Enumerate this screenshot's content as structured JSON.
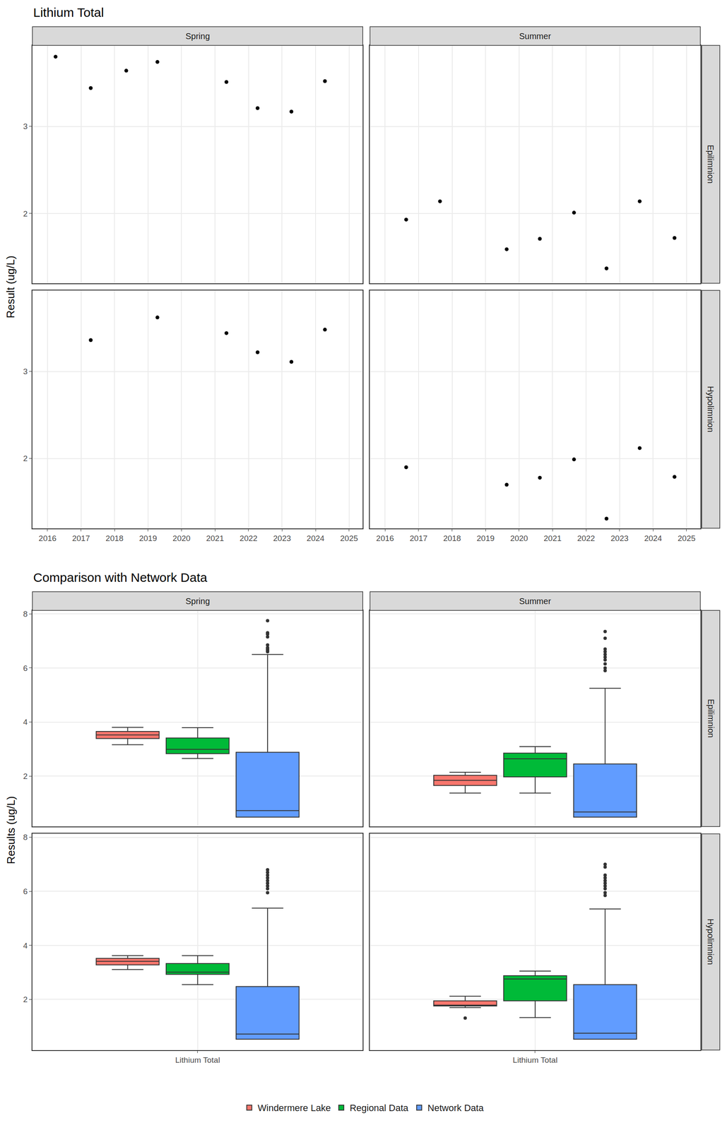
{
  "chart_data": [
    {
      "type": "scatter",
      "title": "Lithium Total",
      "y_label": "Result (ug/L)",
      "color": "#000000",
      "marker": "circle",
      "grid": true,
      "columns": [
        "Spring",
        "Summer"
      ],
      "rows": [
        "Epilimnion",
        "Hypolimnion"
      ],
      "xlim": [
        2015.55,
        2025.41
      ],
      "xticks": [
        2016,
        2017,
        2018,
        2019,
        2020,
        2021,
        2022,
        2023,
        2024,
        2025
      ],
      "ylim": [
        1.2,
        3.93
      ],
      "yticks": [
        2,
        3
      ],
      "panels": [
        {
          "column": "Spring",
          "row": "Epilimnion",
          "x": [
            2016.24,
            2017.29,
            2018.35,
            2019.28,
            2021.34,
            2022.27,
            2023.28,
            2024.28
          ],
          "values": [
            3.8,
            3.44,
            3.64,
            3.74,
            3.51,
            3.21,
            3.17,
            3.52
          ]
        },
        {
          "column": "Summer",
          "row": "Epilimnion",
          "x": [
            2016.63,
            2017.64,
            2019.63,
            2020.62,
            2021.64,
            2022.61,
            2023.6,
            2024.64
          ],
          "values": [
            1.93,
            2.14,
            1.59,
            1.71,
            2.01,
            1.37,
            2.14,
            1.72
          ]
        },
        {
          "column": "Spring",
          "row": "Hypolimnion",
          "x": [
            2017.29,
            2019.28,
            2021.34,
            2022.27,
            2023.28,
            2024.28
          ],
          "values": [
            3.36,
            3.62,
            3.44,
            3.22,
            3.11,
            3.48
          ]
        },
        {
          "column": "Summer",
          "row": "Hypolimnion",
          "x": [
            2016.63,
            2019.63,
            2020.62,
            2021.64,
            2022.61,
            2023.6,
            2024.64
          ],
          "values": [
            1.9,
            1.7,
            1.78,
            1.99,
            1.31,
            2.12,
            1.79
          ]
        }
      ]
    },
    {
      "type": "box",
      "title": "Comparison with Network Data",
      "y_label": "Results (ug/L)",
      "grid": true,
      "legend": "bottom",
      "categories": [
        "Lithium Total"
      ],
      "columns": [
        "Spring",
        "Summer"
      ],
      "rows": [
        "Epilimnion",
        "Hypolimnion"
      ],
      "ylim": [
        0.13,
        8.13
      ],
      "yticks": [
        2,
        4,
        6,
        8
      ],
      "series": [
        {
          "name": "Windermere Lake",
          "color": "#F8766D",
          "panels": [
            {
              "column": "Spring",
              "row": "Epilimnion",
              "lowerfence": 3.16,
              "q1": 3.39,
              "median": 3.52,
              "q3": 3.65,
              "upperfence": 3.8,
              "outliers": []
            },
            {
              "column": "Summer",
              "row": "Epilimnion",
              "lowerfence": 1.37,
              "q1": 1.65,
              "median": 1.84,
              "q3": 2.03,
              "upperfence": 2.14,
              "outliers": []
            },
            {
              "column": "Spring",
              "row": "Hypolimnion",
              "lowerfence": 3.11,
              "q1": 3.28,
              "median": 3.41,
              "q3": 3.52,
              "upperfence": 3.62,
              "outliers": []
            },
            {
              "column": "Summer",
              "row": "Hypolimnion",
              "lowerfence": 1.7,
              "q1": 1.76,
              "median": 1.79,
              "q3": 1.95,
              "upperfence": 2.12,
              "outliers": [
                1.31
              ]
            }
          ]
        },
        {
          "name": "Regional Data",
          "color": "#00BA38",
          "panels": [
            {
              "column": "Spring",
              "row": "Epilimnion",
              "lowerfence": 2.65,
              "q1": 2.83,
              "median": 2.99,
              "q3": 3.41,
              "upperfence": 3.79,
              "outliers": []
            },
            {
              "column": "Summer",
              "row": "Epilimnion",
              "lowerfence": 1.37,
              "q1": 1.97,
              "median": 2.64,
              "q3": 2.85,
              "upperfence": 3.09,
              "outliers": []
            },
            {
              "column": "Spring",
              "row": "Hypolimnion",
              "lowerfence": 2.55,
              "q1": 2.93,
              "median": 3.01,
              "q3": 3.33,
              "upperfence": 3.62,
              "outliers": []
            },
            {
              "column": "Summer",
              "row": "Hypolimnion",
              "lowerfence": 1.33,
              "q1": 1.95,
              "median": 2.76,
              "q3": 2.88,
              "upperfence": 3.05,
              "outliers": []
            }
          ]
        },
        {
          "name": "Network Data",
          "color": "#619CFF",
          "panels": [
            {
              "column": "Spring",
              "row": "Epilimnion",
              "lowerfence": 0.48,
              "q1": 0.48,
              "median": 0.72,
              "q3": 2.88,
              "upperfence": 6.5,
              "outliers": [
                6.6,
                6.65,
                6.7,
                6.75,
                6.85,
                7.15,
                7.25,
                7.3,
                7.75
              ]
            },
            {
              "column": "Summer",
              "row": "Epilimnion",
              "lowerfence": 0.48,
              "q1": 0.48,
              "median": 0.67,
              "q3": 2.45,
              "upperfence": 5.25,
              "outliers": [
                5.9,
                6.0,
                6.15,
                6.3,
                6.4,
                6.5,
                6.6,
                6.7,
                7.1,
                7.35
              ]
            },
            {
              "column": "Spring",
              "row": "Hypolimnion",
              "lowerfence": 0.53,
              "q1": 0.53,
              "median": 0.72,
              "q3": 2.48,
              "upperfence": 5.38,
              "outliers": [
                5.95,
                6.1,
                6.2,
                6.3,
                6.4,
                6.5,
                6.6,
                6.7,
                6.8
              ]
            },
            {
              "column": "Summer",
              "row": "Hypolimnion",
              "lowerfence": 0.53,
              "q1": 0.53,
              "median": 0.75,
              "q3": 2.55,
              "upperfence": 5.35,
              "outliers": [
                5.85,
                5.95,
                6.1,
                6.2,
                6.3,
                6.4,
                6.5,
                6.6,
                6.9,
                7.0
              ]
            }
          ]
        }
      ]
    }
  ]
}
